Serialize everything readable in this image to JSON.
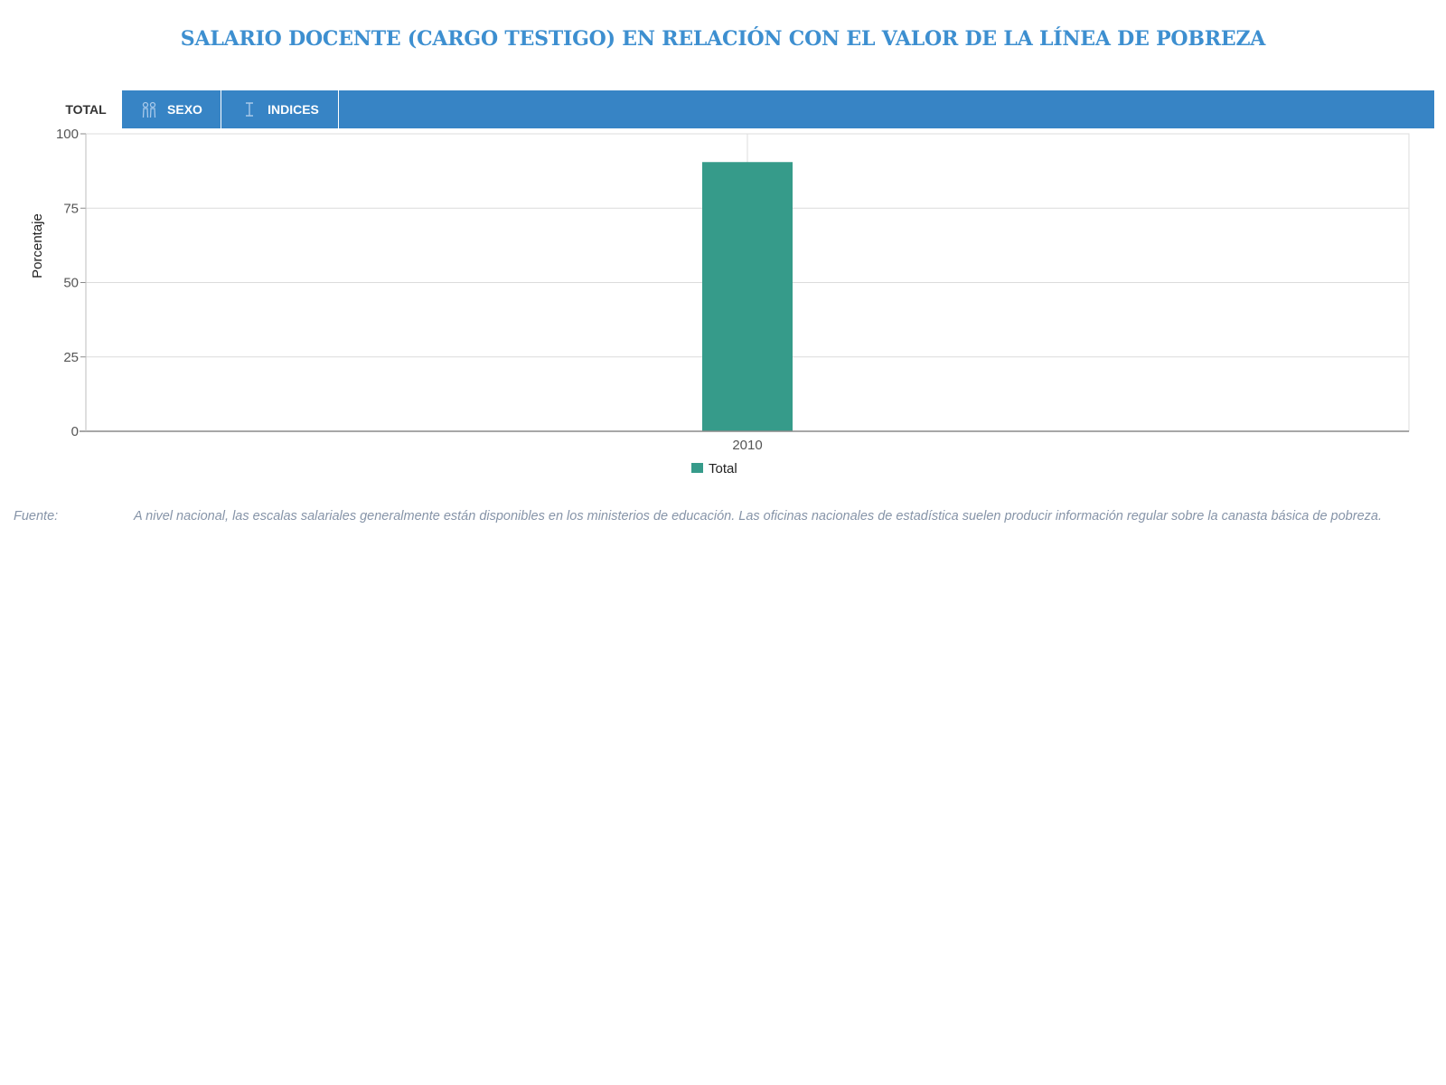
{
  "page": {
    "title": "SALARIO DOCENTE (CARGO TESTIGO) EN RELACIÓN CON EL VALOR DE LA LÍNEA DE POBREZA"
  },
  "tabs": [
    {
      "label": "TOTAL",
      "icon": "",
      "active": true
    },
    {
      "label": "SEXO",
      "icon": "gender-icon",
      "active": false
    },
    {
      "label": "INDICES",
      "icon": "index-icon",
      "active": false
    }
  ],
  "colors": {
    "accent": "#3784c5",
    "title": "#3d8fd0",
    "bar": "#369b8a",
    "source_text": "#8694a8"
  },
  "chart_data": {
    "type": "bar",
    "categories": [
      "2010"
    ],
    "series": [
      {
        "name": "Total",
        "values": [
          90.5
        ]
      }
    ],
    "ylabel": "Porcentaje",
    "xlabel": "",
    "ylim": [
      0,
      100
    ],
    "yticks": [
      "0",
      "25",
      "50",
      "75",
      "100"
    ],
    "grid": true,
    "legend": "bottom-center"
  },
  "source": {
    "label": "Fuente:",
    "text": "A nivel nacional, las escalas salariales generalmente están disponibles en los ministerios de educación. Las oficinas nacionales de estadística suelen producir información regular sobre la canasta básica de pobreza."
  }
}
